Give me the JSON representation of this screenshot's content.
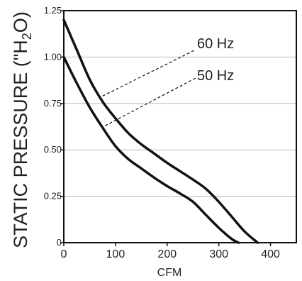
{
  "chart_data": {
    "type": "line",
    "xlabel": "CFM",
    "ylabel": "STATIC PRESSURE (\"H",
    "ylabel_sub": "2",
    "ylabel_end": "O)",
    "xlim": [
      0,
      450
    ],
    "ylim": [
      0,
      1.25
    ],
    "xticks": [
      0,
      100,
      200,
      300,
      400
    ],
    "yticks": [
      0,
      0.25,
      0.5,
      0.75,
      1.0,
      1.25
    ],
    "ytick_labels": [
      "0",
      "0.25",
      "0.50",
      "0.75",
      "1.00",
      "1.25"
    ],
    "grid": true,
    "series": [
      {
        "name": "60 Hz",
        "x": [
          0,
          25,
          50,
          75,
          100,
          125,
          150,
          175,
          200,
          225,
          250,
          275,
          300,
          325,
          350,
          375
        ],
        "y": [
          1.2,
          1.04,
          0.88,
          0.76,
          0.67,
          0.59,
          0.53,
          0.48,
          0.43,
          0.385,
          0.34,
          0.29,
          0.22,
          0.14,
          0.06,
          0
        ]
      },
      {
        "name": "50 Hz",
        "x": [
          0,
          25,
          50,
          75,
          100,
          125,
          150,
          175,
          200,
          225,
          250,
          275,
          300,
          325,
          338
        ],
        "y": [
          1.0,
          0.86,
          0.73,
          0.62,
          0.52,
          0.45,
          0.4,
          0.35,
          0.305,
          0.265,
          0.22,
          0.15,
          0.08,
          0.02,
          0
        ]
      }
    ],
    "annotations": [
      {
        "label": "60 Hz",
        "x": 75,
        "y": 0.79
      },
      {
        "label": "50 Hz",
        "x": 80,
        "y": 0.63
      }
    ],
    "line_color": "#111111",
    "grid_color": "#bdbdbd"
  }
}
